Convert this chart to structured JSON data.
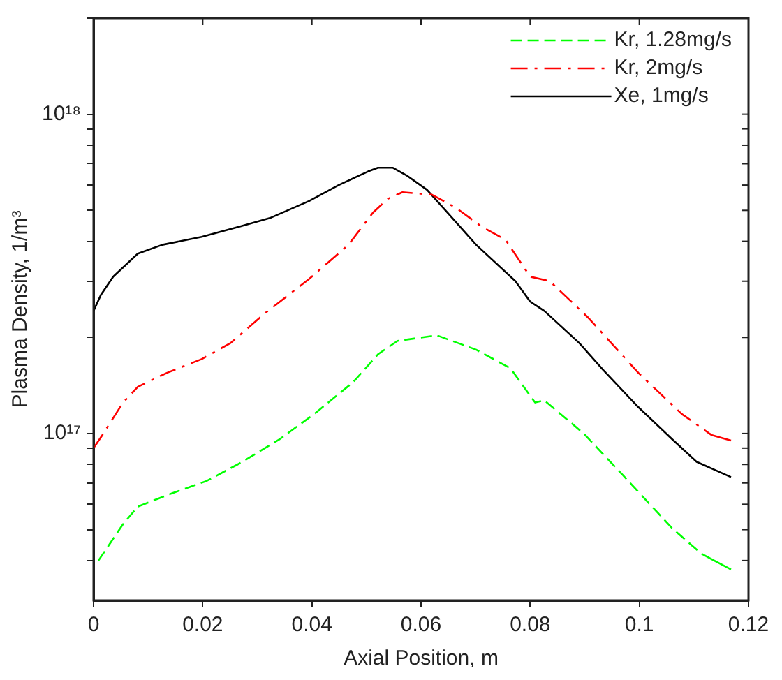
{
  "chart_data": {
    "type": "line",
    "xlabel": "Axial Position, m",
    "ylabel": "Plasma Density, 1/m³",
    "xlim": [
      0,
      0.12
    ],
    "xticks": [
      0,
      0.02,
      0.04,
      0.06,
      0.08,
      0.1,
      0.12
    ],
    "ylim": [
      3e+16,
      2e+18
    ],
    "log": "y",
    "yticks": [
      {
        "value": 4e+16,
        "label": null
      },
      {
        "value": 5e+16,
        "label": null
      },
      {
        "value": 6e+16,
        "label": null
      },
      {
        "value": 7e+16,
        "label": null
      },
      {
        "value": 8e+16,
        "label": null
      },
      {
        "value": 9e+16,
        "label": null
      },
      {
        "value": 1e+17,
        "label": "10¹⁷"
      },
      {
        "value": 2e+17,
        "label": null
      },
      {
        "value": 3e+17,
        "label": null
      },
      {
        "value": 4e+17,
        "label": null
      },
      {
        "value": 5e+17,
        "label": null
      },
      {
        "value": 6e+17,
        "label": null
      },
      {
        "value": 7e+17,
        "label": null
      },
      {
        "value": 8e+17,
        "label": null
      },
      {
        "value": 9e+17,
        "label": null
      },
      {
        "value": 1e+18,
        "label": "10¹⁸"
      },
      {
        "value": 2e+18,
        "label": null
      }
    ],
    "grid": false,
    "legend": "top right",
    "marker": "none",
    "series": [
      {
        "name": "Kr, 1.28mg/s",
        "color": "#00ff00",
        "line_style": "dashed",
        "x": [
          0.0009,
          0.0054,
          0.0081,
          0.0144,
          0.0207,
          0.027,
          0.0341,
          0.0404,
          0.0476,
          0.0521,
          0.0557,
          0.0629,
          0.0701,
          0.0764,
          0.0809,
          0.0826,
          0.0898,
          0.097,
          0.106,
          0.1114,
          0.1168
        ],
        "values": [
          4e+16,
          5.2e+16,
          5.9e+16,
          6.5e+16,
          7.1e+16,
          8.1e+16,
          9.6e+16,
          1.15e+17,
          1.45e+17,
          1.77e+17,
          1.95e+17,
          2.03e+17,
          1.83e+17,
          1.6e+17,
          1.25e+17,
          1.27e+17,
          1e+17,
          7.4e+16,
          5.05e+16,
          4.2e+16,
          3.75e+16
        ]
      },
      {
        "name": "Kr, 2mg/s",
        "color": "#ff0000",
        "line_style": "dashdot",
        "x": [
          0,
          0.0018,
          0.0054,
          0.0081,
          0.0135,
          0.0198,
          0.0251,
          0.0314,
          0.0395,
          0.0467,
          0.0512,
          0.0539,
          0.0566,
          0.062,
          0.0665,
          0.071,
          0.0755,
          0.08,
          0.0836,
          0.0907,
          0.0998,
          0.1078,
          0.1132,
          0.1168
        ],
        "values": [
          9e+16,
          1e+17,
          1.25e+17,
          1.4e+17,
          1.55e+17,
          1.71e+17,
          1.92e+17,
          2.38e+17,
          3.05e+17,
          3.9e+17,
          4.92e+17,
          5.43e+17,
          5.7e+17,
          5.6e+17,
          5.08e+17,
          4.46e+17,
          4.04e+17,
          3.1e+17,
          3e+17,
          2.3e+17,
          1.55e+17,
          1.15e+17,
          9.9e+16,
          9.5e+16
        ]
      },
      {
        "name": "Xe, 1mg/s",
        "color": "#000000",
        "line_style": "solid",
        "x": [
          0,
          0.00135,
          0.0036,
          0.0081,
          0.0126,
          0.0198,
          0.027,
          0.0323,
          0.0395,
          0.0449,
          0.0503,
          0.0521,
          0.0548,
          0.0575,
          0.0611,
          0.0656,
          0.0701,
          0.0773,
          0.08,
          0.0826,
          0.089,
          0.0934,
          0.0998,
          0.106,
          0.1105,
          0.1168
        ],
        "values": [
          2.42e+17,
          2.72e+17,
          3.1e+17,
          3.66e+17,
          3.9e+17,
          4.13e+17,
          4.46e+17,
          4.73e+17,
          5.35e+17,
          6e+17,
          6.62e+17,
          6.8e+17,
          6.8e+17,
          6.41e+17,
          5.8e+17,
          4.76e+17,
          3.9e+17,
          3e+17,
          2.59e+17,
          2.42e+17,
          1.92e+17,
          1.58e+17,
          1.21e+17,
          9.6e+16,
          8.15e+16,
          7.3e+16
        ]
      }
    ]
  }
}
